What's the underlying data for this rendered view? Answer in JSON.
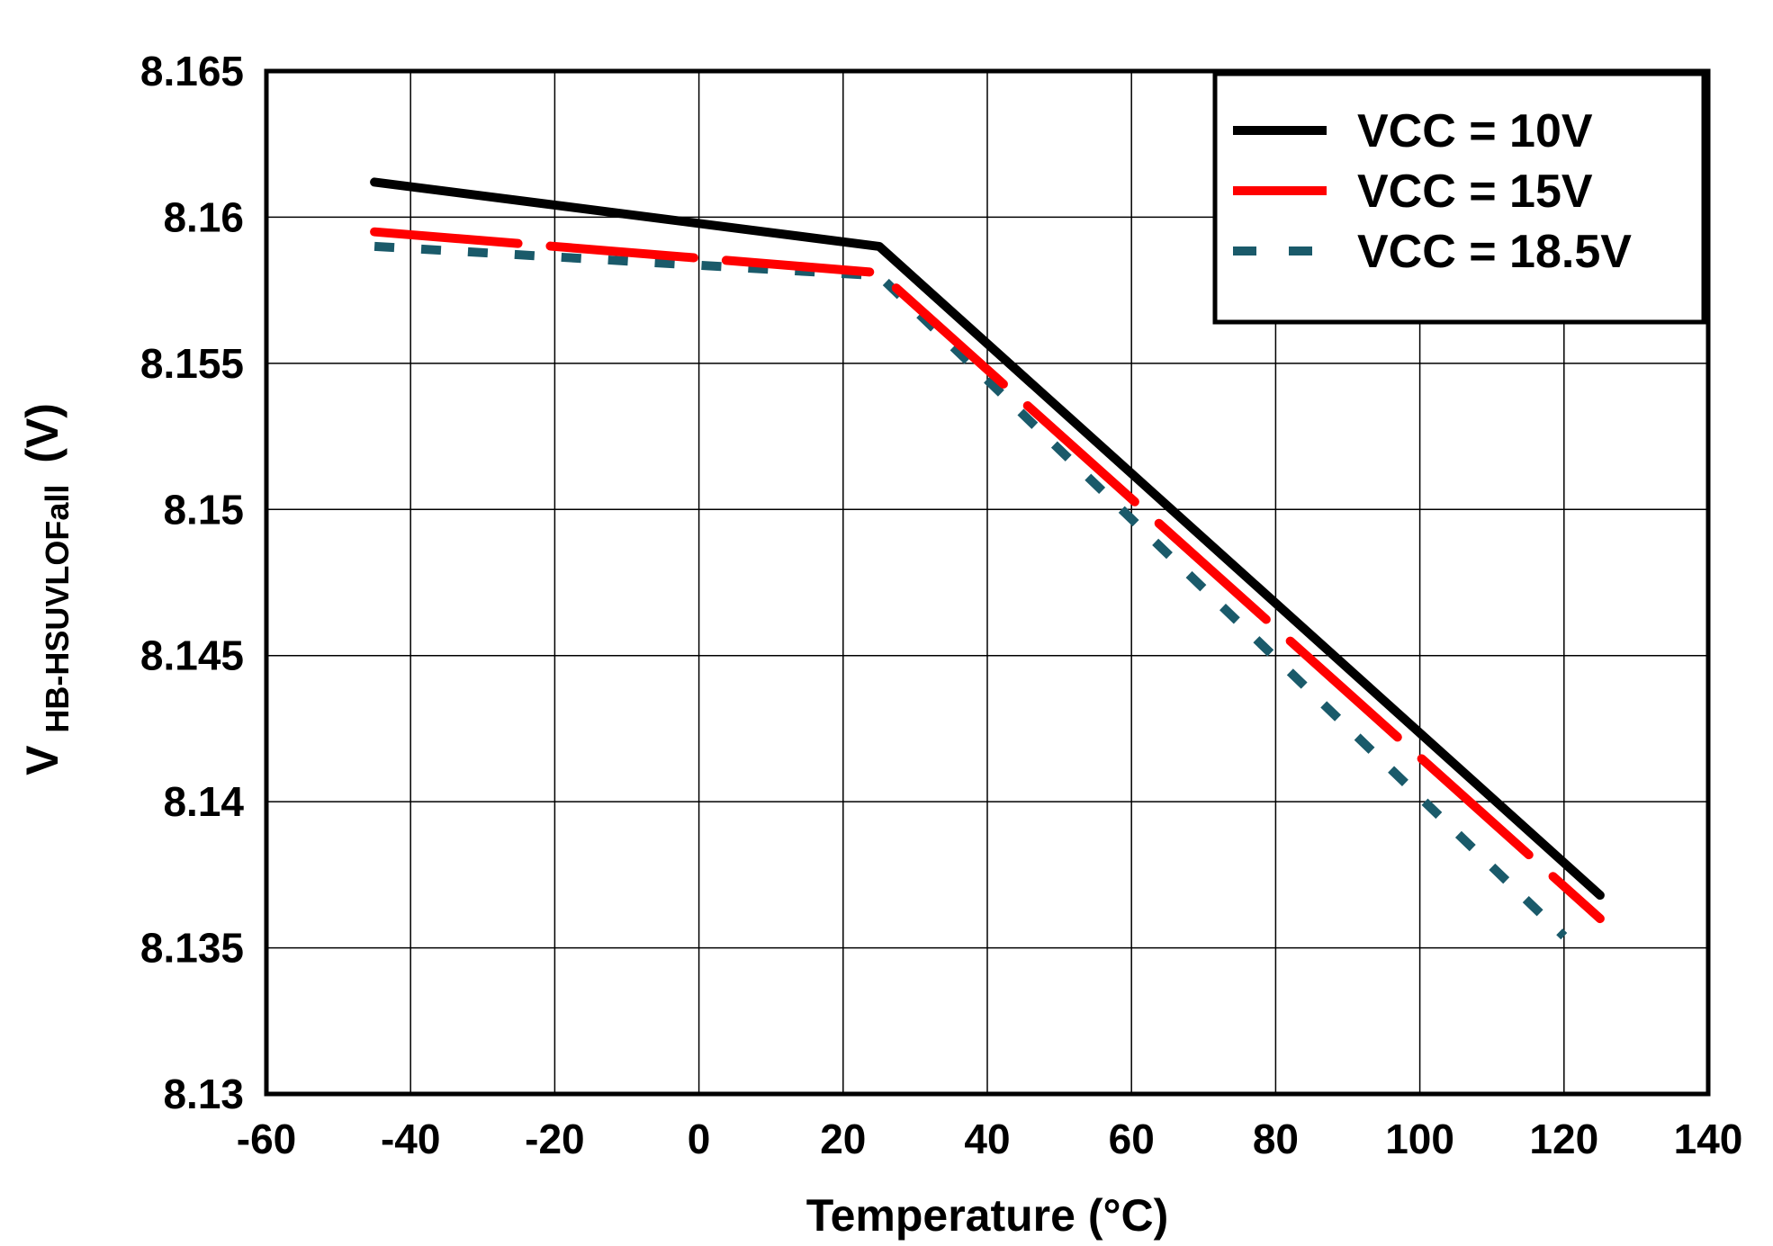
{
  "chart_data": {
    "type": "line",
    "title": "",
    "xlabel": "Temperature (°C)",
    "ylabel": {
      "main": "V",
      "subscript": "HB-HSUVLOFall",
      "unit": "(V)"
    },
    "xlim": [
      -60,
      140
    ],
    "ylim": [
      8.13,
      8.165
    ],
    "xticks": [
      -60,
      -40,
      -20,
      0,
      20,
      40,
      60,
      80,
      100,
      120,
      140
    ],
    "xtick_labels": [
      "-60",
      "-40",
      "-20",
      "0",
      "20",
      "40",
      "60",
      "80",
      "100",
      "120",
      "140"
    ],
    "yticks": [
      8.13,
      8.135,
      8.14,
      8.145,
      8.15,
      8.155,
      8.16,
      8.165
    ],
    "ytick_labels": [
      "8.13",
      "8.135",
      "8.14",
      "8.145",
      "8.15",
      "8.155",
      "8.16",
      "8.165"
    ],
    "grid": true,
    "legend_position": "top-right",
    "series": [
      {
        "name": "VCC = 10V",
        "color": "#000000",
        "dash": "solid",
        "x": [
          -45,
          25,
          125
        ],
        "y": [
          8.1612,
          8.159,
          8.1368
        ]
      },
      {
        "name": "VCC = 15V",
        "color": "#ff0000",
        "dash": "dashed",
        "x": [
          -45,
          25,
          125
        ],
        "y": [
          8.1595,
          8.1581,
          8.136
        ]
      },
      {
        "name": "VCC = 18.5V",
        "color": "#1a5a6a",
        "dash": "dotted",
        "x": [
          -45,
          25,
          120
        ],
        "y": [
          8.159,
          8.158,
          8.1354
        ]
      }
    ]
  }
}
